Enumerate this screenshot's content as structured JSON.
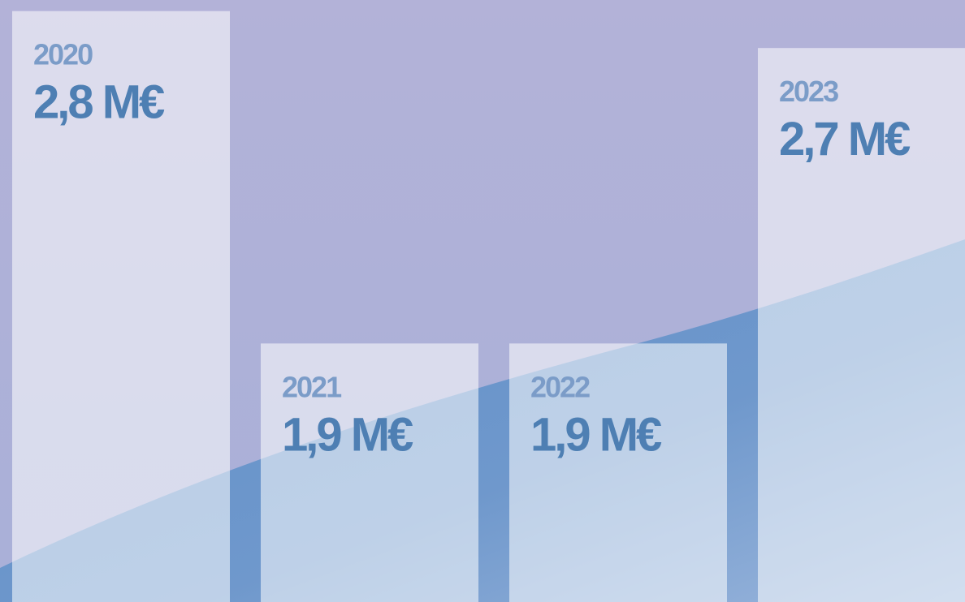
{
  "chart_data": {
    "type": "bar",
    "categories": [
      "2020",
      "2021",
      "2022",
      "2023"
    ],
    "values": [
      2.8,
      1.9,
      1.9,
      2.7
    ],
    "value_labels": [
      "2,8 M€",
      "1,9 M€",
      "1,9 M€",
      "2,7 M€"
    ],
    "color": "#ffffff",
    "ylim": [
      1.2,
      2.83
    ]
  }
}
